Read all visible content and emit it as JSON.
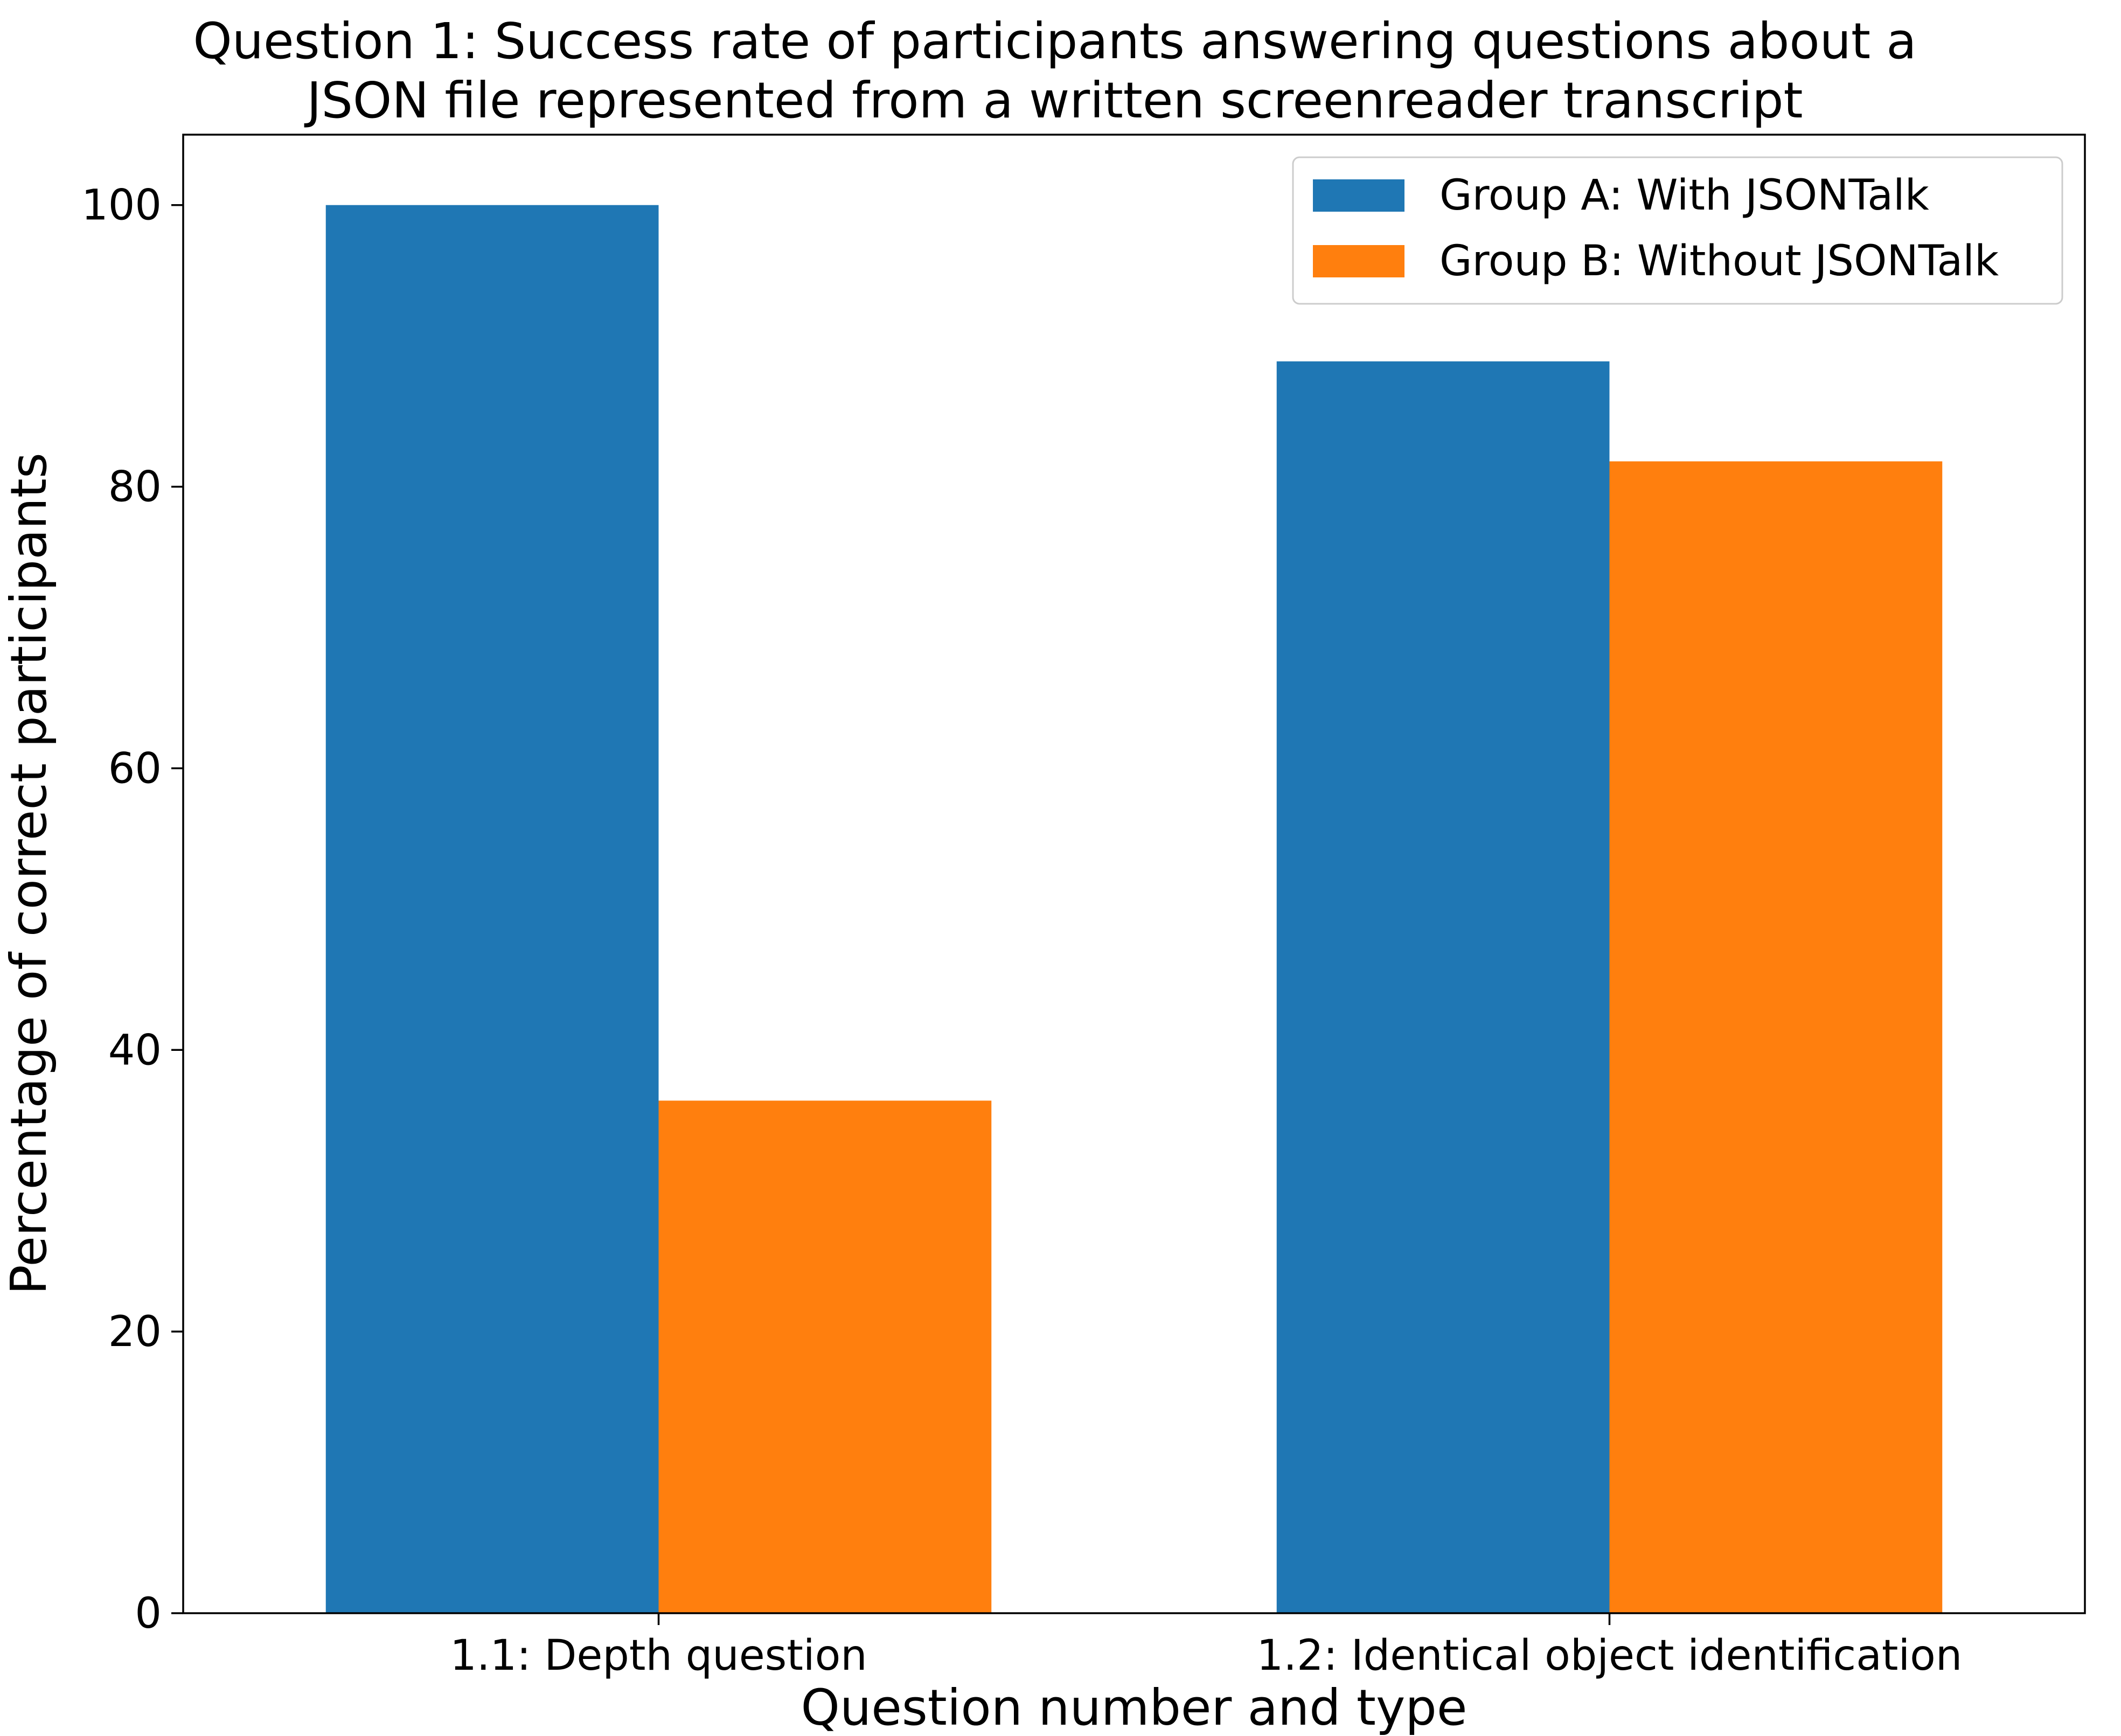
{
  "chart_data": {
    "type": "bar",
    "title_lines": [
      "Question 1: Success rate of participants answering questions about a",
      "JSON file represented from a written screenreader transcript"
    ],
    "xlabel": "Question number and type",
    "ylabel": "Percentage of correct participants",
    "categories": [
      "1.1: Depth question",
      "1.2: Identical object identification"
    ],
    "series": [
      {
        "name": "Group A: With JSONTalk",
        "color": "#1f77b4",
        "values": [
          100,
          88.9
        ]
      },
      {
        "name": "Group B: Without JSONTalk",
        "color": "#ff7f0e",
        "values": [
          36.4,
          81.8
        ]
      }
    ],
    "ylim": [
      0,
      105
    ],
    "yticks": [
      0,
      20,
      40,
      60,
      80,
      100
    ],
    "grid": false,
    "legend_position": "top-right"
  }
}
